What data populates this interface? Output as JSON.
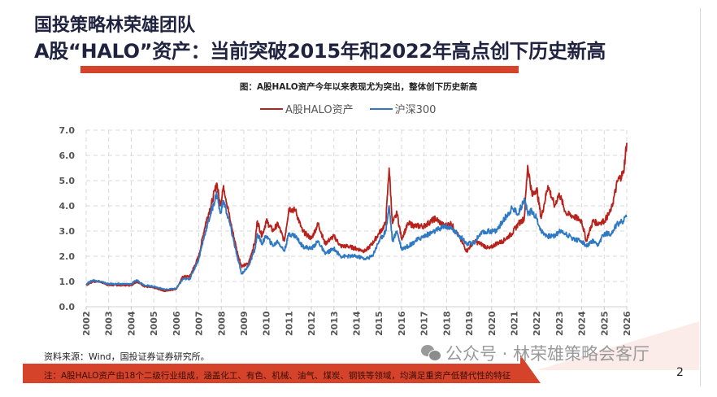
{
  "header": {
    "team": "国投策略林荣雄团队",
    "headline": "A股“HALO”资产：当前突破2015年和2022年高点创下历史新高"
  },
  "figure": {
    "caption": "图：A股HALO资产今年以来表现尤为突出，整体创下历史新高"
  },
  "footer": {
    "source": "资料来源：Wind，国投证券证券研究所。",
    "note": "注：A股HALO资产由18个二级行业组成，涵盖化工、有色、机械、油气、煤炭、钢铁等领域，均满足重资产低替代性的特征",
    "watermark": "公众号 · 林荣雄策略会客厅",
    "page_number": "2"
  },
  "colors": {
    "halo": "#b8221c",
    "hs300": "#2f78c4",
    "accent_bar": "#d4432a",
    "title": "#1f2340"
  },
  "chart_data": {
    "type": "line",
    "title": "图：A股HALO资产今年以来表现尤为突出，整体创下历史新高",
    "xlabel": "",
    "ylabel": "",
    "xlim": [
      2002,
      2026
    ],
    "ylim": [
      0,
      7
    ],
    "yticks": [
      "0.0",
      "1.0",
      "2.0",
      "3.0",
      "4.0",
      "5.0",
      "6.0",
      "7.0"
    ],
    "xticks": [
      "2002",
      "2003",
      "2004",
      "2005",
      "2006",
      "2007",
      "2008",
      "2009",
      "2010",
      "2011",
      "2012",
      "2013",
      "2014",
      "2015",
      "2016",
      "2017",
      "2018",
      "2019",
      "2020",
      "2021",
      "2022",
      "2023",
      "2024",
      "2025",
      "2026"
    ],
    "grid": true,
    "legend": "top-center",
    "series": [
      {
        "name": "A股HALO资产",
        "x": [
          2002.0,
          2002.3,
          2002.6,
          2003.0,
          2003.5,
          2004.0,
          2004.25,
          2004.6,
          2005.0,
          2005.5,
          2006.0,
          2006.3,
          2006.6,
          2007.0,
          2007.3,
          2007.6,
          2007.8,
          2007.95,
          2008.1,
          2008.4,
          2008.7,
          2008.9,
          2009.2,
          2009.5,
          2009.6,
          2009.8,
          2010.0,
          2010.3,
          2010.5,
          2010.8,
          2011.0,
          2011.3,
          2011.6,
          2012.0,
          2012.3,
          2012.6,
          2013.0,
          2013.3,
          2013.6,
          2014.0,
          2014.4,
          2014.7,
          2015.0,
          2015.3,
          2015.45,
          2015.6,
          2015.8,
          2016.0,
          2016.3,
          2016.6,
          2017.0,
          2017.5,
          2017.9,
          2018.2,
          2018.6,
          2018.9,
          2019.2,
          2019.5,
          2019.9,
          2020.2,
          2020.5,
          2020.9,
          2021.2,
          2021.45,
          2021.6,
          2021.8,
          2022.0,
          2022.2,
          2022.5,
          2022.8,
          2023.0,
          2023.3,
          2023.6,
          2024.0,
          2024.2,
          2024.5,
          2024.7,
          2025.0,
          2025.3,
          2025.6,
          2025.85,
          2026.0
        ],
        "values": [
          0.85,
          1.0,
          1.0,
          0.85,
          0.85,
          0.85,
          1.0,
          0.8,
          0.75,
          0.62,
          0.7,
          1.2,
          1.2,
          2.0,
          3.3,
          4.2,
          4.9,
          4.0,
          4.8,
          3.4,
          2.2,
          1.6,
          1.7,
          2.6,
          3.4,
          2.8,
          3.4,
          3.0,
          3.3,
          2.6,
          3.9,
          3.8,
          3.0,
          2.7,
          3.3,
          2.5,
          2.8,
          2.4,
          2.4,
          2.3,
          2.2,
          2.5,
          2.9,
          3.3,
          5.5,
          3.3,
          3.7,
          2.7,
          3.3,
          3.2,
          3.2,
          3.5,
          3.2,
          3.3,
          2.7,
          2.2,
          2.6,
          2.5,
          2.3,
          2.5,
          2.6,
          2.9,
          3.3,
          3.5,
          5.6,
          4.4,
          4.7,
          3.5,
          4.8,
          4.0,
          4.5,
          3.7,
          3.6,
          3.4,
          2.6,
          3.4,
          3.3,
          3.4,
          3.8,
          5.0,
          5.3,
          6.5
        ]
      },
      {
        "name": "沪深300",
        "x": [
          2002.0,
          2002.3,
          2002.6,
          2003.0,
          2003.5,
          2004.0,
          2004.25,
          2004.6,
          2005.0,
          2005.5,
          2006.0,
          2006.3,
          2006.6,
          2007.0,
          2007.3,
          2007.6,
          2007.8,
          2007.95,
          2008.1,
          2008.4,
          2008.7,
          2008.9,
          2009.2,
          2009.5,
          2009.6,
          2009.8,
          2010.0,
          2010.3,
          2010.5,
          2010.8,
          2011.0,
          2011.3,
          2011.6,
          2012.0,
          2012.3,
          2012.6,
          2013.0,
          2013.3,
          2013.6,
          2014.0,
          2014.4,
          2014.7,
          2015.0,
          2015.3,
          2015.45,
          2015.6,
          2015.8,
          2016.0,
          2016.3,
          2016.6,
          2017.0,
          2017.5,
          2017.9,
          2018.2,
          2018.6,
          2018.9,
          2019.2,
          2019.5,
          2019.9,
          2020.2,
          2020.5,
          2020.9,
          2021.2,
          2021.45,
          2021.6,
          2021.8,
          2022.0,
          2022.2,
          2022.5,
          2022.8,
          2023.0,
          2023.3,
          2023.6,
          2024.0,
          2024.2,
          2024.5,
          2024.7,
          2025.0,
          2025.3,
          2025.6,
          2025.85,
          2026.0
        ],
        "values": [
          0.9,
          1.05,
          1.0,
          0.9,
          0.9,
          0.9,
          1.05,
          0.85,
          0.8,
          0.68,
          0.72,
          1.1,
          1.1,
          1.9,
          3.0,
          3.9,
          4.5,
          3.7,
          4.2,
          3.2,
          2.0,
          1.3,
          1.6,
          2.3,
          2.9,
          2.5,
          2.8,
          2.4,
          2.6,
          2.2,
          2.9,
          2.8,
          2.4,
          2.3,
          2.6,
          2.1,
          2.3,
          2.0,
          2.0,
          2.0,
          1.9,
          2.0,
          2.6,
          3.0,
          4.0,
          2.6,
          3.0,
          2.3,
          2.4,
          2.6,
          2.8,
          3.0,
          3.2,
          3.1,
          2.8,
          2.5,
          2.5,
          2.9,
          3.0,
          3.0,
          3.4,
          3.9,
          3.7,
          4.3,
          3.7,
          3.8,
          3.5,
          3.0,
          2.8,
          2.8,
          3.0,
          2.9,
          2.7,
          2.6,
          2.4,
          2.6,
          2.4,
          2.9,
          2.9,
          3.3,
          3.4,
          3.6
        ]
      }
    ]
  }
}
